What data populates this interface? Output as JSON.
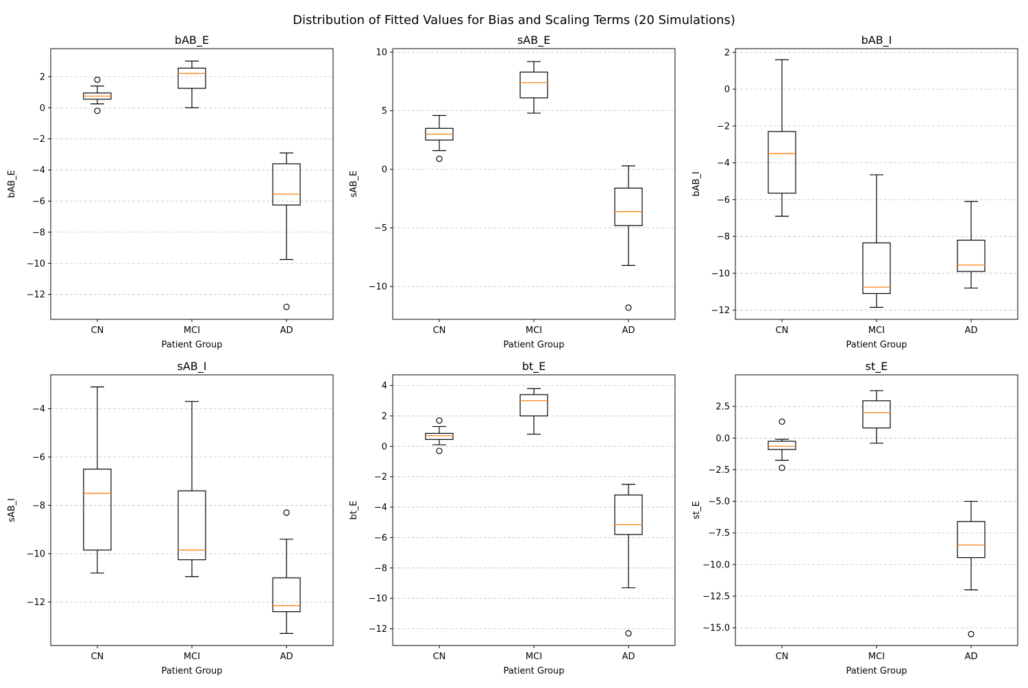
{
  "figure_title": "Distribution of Fitted Values for Bias and Scaling Terms (20 Simulations)",
  "colors": {
    "box_edge": "#000000",
    "median": "#ff7f0e",
    "grid": "#b0b0b0",
    "background": "#ffffff"
  },
  "chart_data": [
    {
      "type": "box",
      "title": "bAB_E",
      "xlabel": "Patient Group",
      "ylabel": "bAB_E",
      "categories": [
        "CN",
        "MCI",
        "AD"
      ],
      "ylim": [
        -13.6,
        3.8
      ],
      "yticks": [
        2,
        0,
        -2,
        -4,
        -6,
        -8,
        -10,
        -12
      ],
      "grid": "y",
      "boxes": [
        {
          "group": "CN",
          "whisker_low": 0.25,
          "q1": 0.55,
          "median": 0.75,
          "q3": 0.95,
          "whisker_high": 1.4,
          "outliers": [
            1.8,
            -0.2
          ]
        },
        {
          "group": "MCI",
          "whisker_low": 0.0,
          "q1": 1.25,
          "median": 2.2,
          "q3": 2.55,
          "whisker_high": 3.0,
          "outliers": []
        },
        {
          "group": "AD",
          "whisker_low": -9.75,
          "q1": -6.25,
          "median": -5.55,
          "q3": -3.6,
          "whisker_high": -2.9,
          "outliers": [
            -12.8
          ]
        }
      ]
    },
    {
      "type": "box",
      "title": "sAB_E",
      "xlabel": "Patient Group",
      "ylabel": "sAB_E",
      "categories": [
        "CN",
        "MCI",
        "AD"
      ],
      "ylim": [
        -12.8,
        10.3
      ],
      "yticks": [
        10,
        5,
        0,
        -5,
        -10
      ],
      "grid": "y",
      "boxes": [
        {
          "group": "CN",
          "whisker_low": 1.6,
          "q1": 2.5,
          "median": 3.0,
          "q3": 3.5,
          "whisker_high": 4.6,
          "outliers": [
            0.9
          ]
        },
        {
          "group": "MCI",
          "whisker_low": 4.8,
          "q1": 6.1,
          "median": 7.4,
          "q3": 8.3,
          "whisker_high": 9.2,
          "outliers": []
        },
        {
          "group": "AD",
          "whisker_low": -8.2,
          "q1": -4.8,
          "median": -3.6,
          "q3": -1.6,
          "whisker_high": 0.3,
          "outliers": [
            -11.8
          ]
        }
      ]
    },
    {
      "type": "box",
      "title": "bAB_I",
      "xlabel": "Patient Group",
      "ylabel": "bAB_I",
      "categories": [
        "CN",
        "MCI",
        "AD"
      ],
      "ylim": [
        -12.5,
        2.2
      ],
      "yticks": [
        2,
        0,
        -2,
        -4,
        -6,
        -8,
        -10,
        -12
      ],
      "grid": "y",
      "boxes": [
        {
          "group": "CN",
          "whisker_low": -6.9,
          "q1": -5.65,
          "median": -3.5,
          "q3": -2.3,
          "whisker_high": 1.6,
          "outliers": []
        },
        {
          "group": "MCI",
          "whisker_low": -11.85,
          "q1": -11.1,
          "median": -10.75,
          "q3": -8.35,
          "whisker_high": -4.65,
          "outliers": []
        },
        {
          "group": "AD",
          "whisker_low": -10.8,
          "q1": -9.9,
          "median": -9.55,
          "q3": -8.2,
          "whisker_high": -6.1,
          "outliers": []
        }
      ]
    },
    {
      "type": "box",
      "title": "sAB_I",
      "xlabel": "Patient Group",
      "ylabel": "sAB_I",
      "categories": [
        "CN",
        "MCI",
        "AD"
      ],
      "ylim": [
        -13.8,
        -2.6
      ],
      "yticks": [
        -4,
        -6,
        -8,
        -10,
        -12
      ],
      "grid": "y",
      "boxes": [
        {
          "group": "CN",
          "whisker_low": -10.8,
          "q1": -9.85,
          "median": -7.5,
          "q3": -6.5,
          "whisker_high": -3.1,
          "outliers": []
        },
        {
          "group": "MCI",
          "whisker_low": -10.95,
          "q1": -10.25,
          "median": -9.85,
          "q3": -7.4,
          "whisker_high": -3.7,
          "outliers": []
        },
        {
          "group": "AD",
          "whisker_low": -13.3,
          "q1": -12.4,
          "median": -12.15,
          "q3": -11.0,
          "whisker_high": -9.4,
          "outliers": [
            -8.3
          ]
        }
      ]
    },
    {
      "type": "box",
      "title": "bt_E",
      "xlabel": "Patient Group",
      "ylabel": "bt_E",
      "categories": [
        "CN",
        "MCI",
        "AD"
      ],
      "ylim": [
        -13.1,
        4.7
      ],
      "yticks": [
        4,
        2,
        0,
        -2,
        -4,
        -6,
        -8,
        -10,
        -12
      ],
      "grid": "y",
      "boxes": [
        {
          "group": "CN",
          "whisker_low": 0.1,
          "q1": 0.45,
          "median": 0.7,
          "q3": 0.85,
          "whisker_high": 1.3,
          "outliers": [
            1.7,
            -0.3
          ]
        },
        {
          "group": "MCI",
          "whisker_low": 0.8,
          "q1": 2.0,
          "median": 3.0,
          "q3": 3.4,
          "whisker_high": 3.8,
          "outliers": []
        },
        {
          "group": "AD",
          "whisker_low": -9.3,
          "q1": -5.8,
          "median": -5.15,
          "q3": -3.2,
          "whisker_high": -2.5,
          "outliers": [
            -12.3
          ]
        }
      ]
    },
    {
      "type": "box",
      "title": "st_E",
      "xlabel": "Patient Group",
      "ylabel": "st_E",
      "categories": [
        "CN",
        "MCI",
        "AD"
      ],
      "ylim": [
        -16.4,
        5.0
      ],
      "yticks": [
        2.5,
        0.0,
        -2.5,
        -5.0,
        -7.5,
        -10.0,
        -12.5,
        -15.0
      ],
      "grid": "y",
      "boxes": [
        {
          "group": "CN",
          "whisker_low": -1.75,
          "q1": -0.9,
          "median": -0.65,
          "q3": -0.25,
          "whisker_high": -0.1,
          "outliers": [
            1.3,
            -2.35
          ]
        },
        {
          "group": "MCI",
          "whisker_low": -0.4,
          "q1": 0.8,
          "median": 2.0,
          "q3": 2.95,
          "whisker_high": 3.75,
          "outliers": []
        },
        {
          "group": "AD",
          "whisker_low": -12.0,
          "q1": -9.45,
          "median": -8.45,
          "q3": -6.6,
          "whisker_high": -5.0,
          "outliers": [
            -15.5
          ]
        }
      ]
    }
  ]
}
